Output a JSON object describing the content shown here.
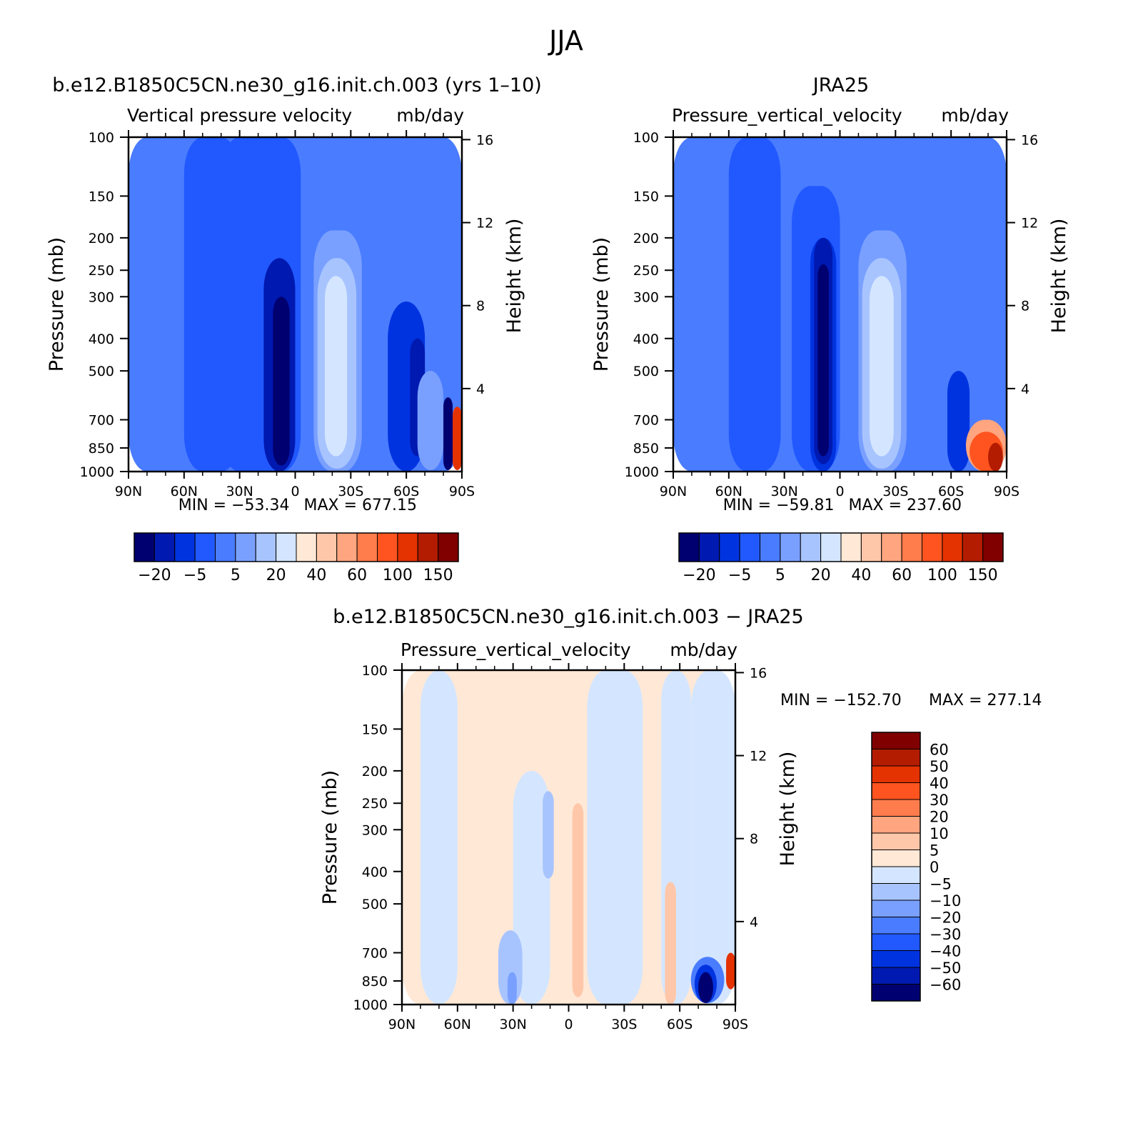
{
  "figure": {
    "title": "JJA"
  },
  "chart_data": [
    {
      "type": "heatmap",
      "case_title": "b.e12.B1850C5CN.ne30_g16.init.ch.003 (yrs 1–10)",
      "var_label": "Vertical pressure velocity",
      "units": "mb/day",
      "ylabel": "Pressure (mb)",
      "ylabel_right": "Height (km)",
      "x_ticks": [
        "90N",
        "60N",
        "30N",
        "0",
        "30S",
        "60S",
        "90S"
      ],
      "y_ticks": [
        "100",
        "150",
        "200",
        "250",
        "300",
        "400",
        "500",
        "700",
        "850",
        "1000"
      ],
      "y_right_ticks": [
        "16",
        "12",
        "8",
        "4"
      ],
      "ylim": [
        1000,
        100
      ],
      "min_text": "MIN = −53.34",
      "max_text": "MAX = 677.15",
      "colorbar": {
        "labels": [
          "−20",
          "−5",
          "5",
          "20",
          "40",
          "60",
          "100",
          "150"
        ],
        "colors": [
          "#000070",
          "#0019b0",
          "#0033e0",
          "#2159ff",
          "#4a7cff",
          "#7aa0ff",
          "#a8c4ff",
          "#d4e6ff",
          "#ffe8d6",
          "#ffc7aa",
          "#ffa57f",
          "#ff7c4c",
          "#ff541f",
          "#e43200",
          "#b31c00",
          "#800000"
        ]
      },
      "field_regions": [
        {
          "lat": [
            -90,
            90
          ],
          "p": [
            100,
            1000
          ],
          "level": 4
        },
        {
          "lat": [
            -60,
            -30
          ],
          "p": [
            100,
            1000
          ],
          "level": 3
        },
        {
          "lat": [
            -40,
            3
          ],
          "p": [
            100,
            1000
          ],
          "level": 3
        },
        {
          "lat": [
            -17,
            0
          ],
          "p": [
            230,
            1000
          ],
          "level": 1
        },
        {
          "lat": [
            -12,
            -3
          ],
          "p": [
            300,
            960
          ],
          "level": 0
        },
        {
          "lat": [
            10,
            36
          ],
          "p": [
            190,
            1000
          ],
          "level": 5
        },
        {
          "lat": [
            12,
            33
          ],
          "p": [
            230,
            980
          ],
          "level": 6
        },
        {
          "lat": [
            16,
            28
          ],
          "p": [
            260,
            900
          ],
          "level": 7
        },
        {
          "lat": [
            50,
            70
          ],
          "p": [
            310,
            1000
          ],
          "level": 2
        },
        {
          "lat": [
            62,
            70
          ],
          "p": [
            400,
            900
          ],
          "level": 1
        },
        {
          "lat": [
            66,
            80
          ],
          "p": [
            500,
            990
          ],
          "level": 5
        },
        {
          "lat": [
            80,
            85
          ],
          "p": [
            600,
            990
          ],
          "level": 0
        },
        {
          "lat": [
            85,
            90
          ],
          "p": [
            640,
            990
          ],
          "level": 13
        }
      ]
    },
    {
      "type": "heatmap",
      "case_title": "JRA25",
      "var_label": "Pressure_vertical_velocity",
      "units": "mb/day",
      "ylabel": "Pressure (mb)",
      "ylabel_right": "Height (km)",
      "x_ticks": [
        "90N",
        "60N",
        "30N",
        "0",
        "30S",
        "60S",
        "90S"
      ],
      "y_ticks": [
        "100",
        "150",
        "200",
        "250",
        "300",
        "400",
        "500",
        "700",
        "850",
        "1000"
      ],
      "y_right_ticks": [
        "16",
        "12",
        "8",
        "4"
      ],
      "ylim": [
        1000,
        100
      ],
      "min_text": "MIN = −59.81",
      "max_text": "MAX = 237.60",
      "colorbar": {
        "labels": [
          "−20",
          "−5",
          "5",
          "20",
          "40",
          "60",
          "100",
          "150"
        ],
        "colors": [
          "#000070",
          "#0019b0",
          "#0033e0",
          "#2159ff",
          "#4a7cff",
          "#7aa0ff",
          "#a8c4ff",
          "#d4e6ff",
          "#ffe8d6",
          "#ffc7aa",
          "#ffa57f",
          "#ff7c4c",
          "#ff541f",
          "#e43200",
          "#b31c00",
          "#800000"
        ]
      },
      "field_regions": [
        {
          "lat": [
            -90,
            90
          ],
          "p": [
            100,
            1000
          ],
          "level": 4
        },
        {
          "lat": [
            -60,
            -32
          ],
          "p": [
            100,
            1000
          ],
          "level": 3
        },
        {
          "lat": [
            -26,
            0
          ],
          "p": [
            140,
            1000
          ],
          "level": 3
        },
        {
          "lat": [
            -16,
            -2
          ],
          "p": [
            200,
            1000
          ],
          "level": 2
        },
        {
          "lat": [
            -14,
            -4
          ],
          "p": [
            200,
            950
          ],
          "level": 1
        },
        {
          "lat": [
            -12,
            -6
          ],
          "p": [
            240,
            900
          ],
          "level": 0
        },
        {
          "lat": [
            10,
            36
          ],
          "p": [
            190,
            1000
          ],
          "level": 5
        },
        {
          "lat": [
            12,
            33
          ],
          "p": [
            230,
            980
          ],
          "level": 6
        },
        {
          "lat": [
            16,
            29
          ],
          "p": [
            260,
            900
          ],
          "level": 7
        },
        {
          "lat": [
            58,
            70
          ],
          "p": [
            500,
            1000
          ],
          "level": 2
        },
        {
          "lat": [
            68,
            90
          ],
          "p": [
            700,
            1000
          ],
          "level": 10
        },
        {
          "lat": [
            70,
            88
          ],
          "p": [
            760,
            1000
          ],
          "level": 12
        },
        {
          "lat": [
            80,
            88
          ],
          "p": [
            820,
            1000
          ],
          "level": 14
        }
      ]
    },
    {
      "type": "heatmap",
      "case_title": "b.e12.B1850C5CN.ne30_g16.init.ch.003 − JRA25",
      "var_label": "Pressure_vertical_velocity",
      "units": "mb/day",
      "ylabel": "Pressure (mb)",
      "ylabel_right": "Height (km)",
      "x_ticks": [
        "90N",
        "60N",
        "30N",
        "0",
        "30S",
        "60S",
        "90S"
      ],
      "y_ticks": [
        "100",
        "150",
        "200",
        "250",
        "300",
        "400",
        "500",
        "700",
        "850",
        "1000"
      ],
      "y_right_ticks": [
        "16",
        "12",
        "8",
        "4"
      ],
      "ylim": [
        1000,
        100
      ],
      "min_text": "MIN = −152.70",
      "max_text": "MAX = 277.14",
      "colorbar": {
        "labels": [
          "60",
          "50",
          "40",
          "30",
          "20",
          "10",
          "5",
          "0",
          "−5",
          "−10",
          "−20",
          "−30",
          "−40",
          "−50",
          "−60"
        ],
        "colors": [
          "#800000",
          "#b31c00",
          "#e43200",
          "#ff541f",
          "#ff7c4c",
          "#ffa57f",
          "#ffc7aa",
          "#ffe8d6",
          "#d4e6ff",
          "#a8c4ff",
          "#7aa0ff",
          "#4a7cff",
          "#2159ff",
          "#0033e0",
          "#0019b0",
          "#000070"
        ]
      },
      "field_regions": [
        {
          "lat": [
            -90,
            90
          ],
          "p": [
            100,
            1000
          ],
          "level": 7
        },
        {
          "lat": [
            -80,
            -60
          ],
          "p": [
            100,
            1000
          ],
          "level": 8
        },
        {
          "lat": [
            -20,
            5
          ],
          "p": [
            100,
            1000
          ],
          "level": 7
        },
        {
          "lat": [
            -30,
            -10
          ],
          "p": [
            200,
            1000
          ],
          "level": 8
        },
        {
          "lat": [
            -14,
            -8
          ],
          "p": [
            230,
            420
          ],
          "level": 9
        },
        {
          "lat": [
            -38,
            -25
          ],
          "p": [
            600,
            1000
          ],
          "level": 9
        },
        {
          "lat": [
            -33,
            -28
          ],
          "p": [
            800,
            1000
          ],
          "level": 10
        },
        {
          "lat": [
            2,
            8
          ],
          "p": [
            250,
            950
          ],
          "level": 6
        },
        {
          "lat": [
            10,
            40
          ],
          "p": [
            100,
            1000
          ],
          "level": 8
        },
        {
          "lat": [
            50,
            66
          ],
          "p": [
            100,
            1000
          ],
          "level": 8
        },
        {
          "lat": [
            52,
            58
          ],
          "p": [
            430,
            1000
          ],
          "level": 6
        },
        {
          "lat": [
            66,
            90
          ],
          "p": [
            100,
            1000
          ],
          "level": 8
        },
        {
          "lat": [
            66,
            84
          ],
          "p": [
            720,
            990
          ],
          "level": 11
        },
        {
          "lat": [
            68,
            80
          ],
          "p": [
            760,
            990
          ],
          "level": 13
        },
        {
          "lat": [
            70,
            78
          ],
          "p": [
            800,
            990
          ],
          "level": 15
        },
        {
          "lat": [
            85,
            90
          ],
          "p": [
            700,
            900
          ],
          "level": 2
        }
      ]
    }
  ]
}
